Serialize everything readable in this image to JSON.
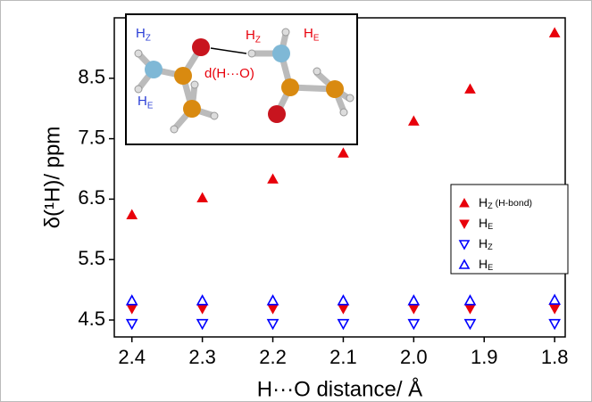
{
  "chart_data": {
    "type": "scatter",
    "xlabel": "H···O distance/ Å",
    "ylabel": "δ(¹H)/ ppm",
    "xlim": [
      2.425,
      1.785
    ],
    "ylim": [
      4.22,
      9.5
    ],
    "xticks": [
      2.4,
      2.3,
      2.2,
      2.1,
      {
        "value": 2.0,
        "label": "2.0"
      },
      1.9,
      1.8
    ],
    "yticks": [
      4.5,
      5.5,
      6.5,
      7.5,
      8.5
    ],
    "legend": "center right",
    "series": [
      {
        "name": "HZ (H-bond)",
        "color": "#e8000b",
        "marker": "triangle-up",
        "filled": true,
        "x": [
          2.4,
          2.3,
          2.2,
          2.1,
          2.0,
          1.92,
          1.8
        ],
        "values": [
          6.24,
          6.52,
          6.83,
          7.26,
          7.79,
          8.32,
          9.25
        ]
      },
      {
        "name": "HE",
        "color": "#e8000b",
        "marker": "triangle-down",
        "filled": true,
        "x": [
          2.4,
          2.3,
          2.2,
          2.1,
          2.0,
          1.92,
          1.8
        ],
        "values": [
          4.69,
          4.69,
          4.69,
          4.69,
          4.69,
          4.69,
          4.69
        ]
      },
      {
        "name": "HZ",
        "color": "#0000ff",
        "marker": "triangle-down",
        "filled": false,
        "x": [
          2.4,
          2.3,
          2.2,
          2.1,
          2.0,
          1.92,
          1.8
        ],
        "values": [
          4.44,
          4.44,
          4.44,
          4.44,
          4.44,
          4.44,
          4.44
        ]
      },
      {
        "name": "HE",
        "color": "#0000ff",
        "marker": "triangle-up",
        "filled": false,
        "x": [
          2.4,
          2.3,
          2.2,
          2.1,
          2.0,
          1.92,
          1.8
        ],
        "values": [
          4.82,
          4.82,
          4.82,
          4.82,
          4.82,
          4.82,
          4.83
        ]
      }
    ],
    "inset_labels": [
      {
        "text": "HZ",
        "color": "#2b3fd6"
      },
      {
        "text": "HE",
        "color": "#2b3fd6"
      },
      {
        "text": "HZ",
        "color": "#e8000b"
      },
      {
        "text": "HE",
        "color": "#e8000b"
      },
      {
        "text": "d(H···O)",
        "color": "#e8000b"
      }
    ]
  }
}
